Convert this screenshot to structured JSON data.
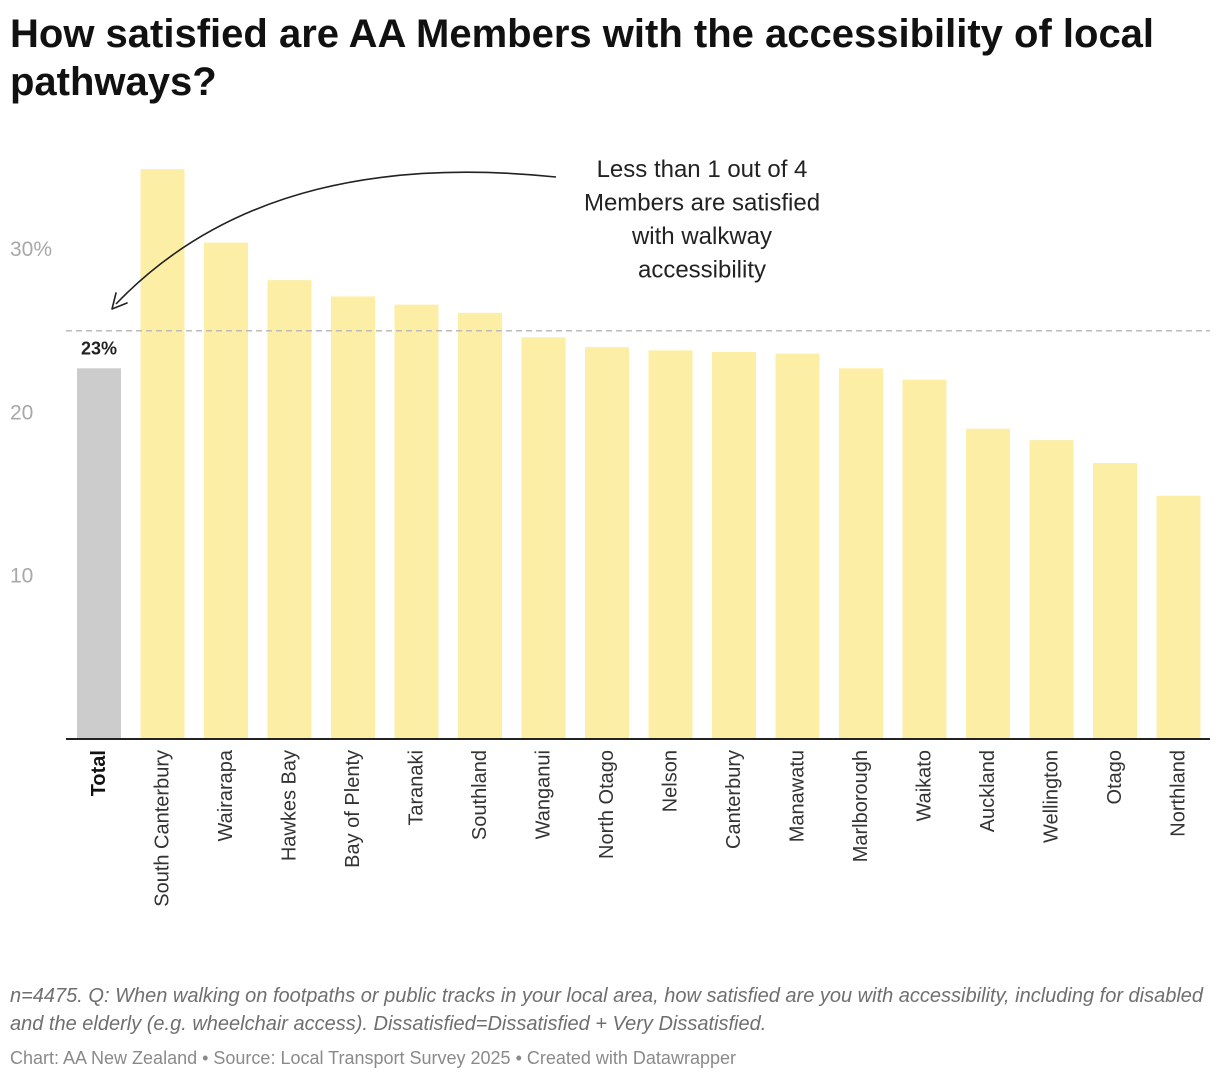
{
  "chart_data": {
    "type": "bar",
    "title": "How satisfied are AA Members with the accessibility of local pathways?",
    "categories": [
      "Total",
      "South Canterbury",
      "Wairarapa",
      "Hawkes Bay",
      "Bay of Plenty",
      "Taranaki",
      "Southland",
      "Wanganui",
      "North Otago",
      "Nelson",
      "Canterbury",
      "Manawatu",
      "Marlborough",
      "Waikato",
      "Auckland",
      "Wellington",
      "Otago",
      "Northland"
    ],
    "values": [
      22.7,
      34.9,
      30.4,
      28.1,
      27.1,
      26.6,
      26.1,
      24.6,
      24.0,
      23.8,
      23.7,
      23.6,
      22.7,
      22.0,
      19.0,
      18.3,
      16.9,
      14.9
    ],
    "highlight_category": "Total",
    "colors": {
      "highlight": "#cccccc",
      "bars": "#fdeea5",
      "axis": "#222222",
      "reference_line": "#bbbbbb",
      "annotation": "#222222"
    },
    "ylim": [
      0,
      35
    ],
    "yticks": [
      {
        "value": 10,
        "label": "10"
      },
      {
        "value": 20,
        "label": "20"
      },
      {
        "value": 30,
        "label": "30%"
      }
    ],
    "reference_line": {
      "value": 25,
      "style": "dashed"
    },
    "data_labels": [
      {
        "category": "Total",
        "text": "23%"
      }
    ],
    "annotations": [
      {
        "lines": [
          "Less than 1 out of 4",
          "Members are satisfied",
          "with walkway",
          "accessibility"
        ],
        "points_to": "Total"
      }
    ],
    "xlabel": "",
    "ylabel": ""
  },
  "notes": "n=4475. Q: When walking on footpaths or public tracks in your local area, how satisfied are you with accessibility, including for disabled and the elderly (e.g. wheelchair access). Dissatisfied=Dissatisfied + Very Dissatisfied.",
  "credit": "Chart: AA New Zealand • Source: Local Transport Survey 2025 • Created with Datawrapper"
}
